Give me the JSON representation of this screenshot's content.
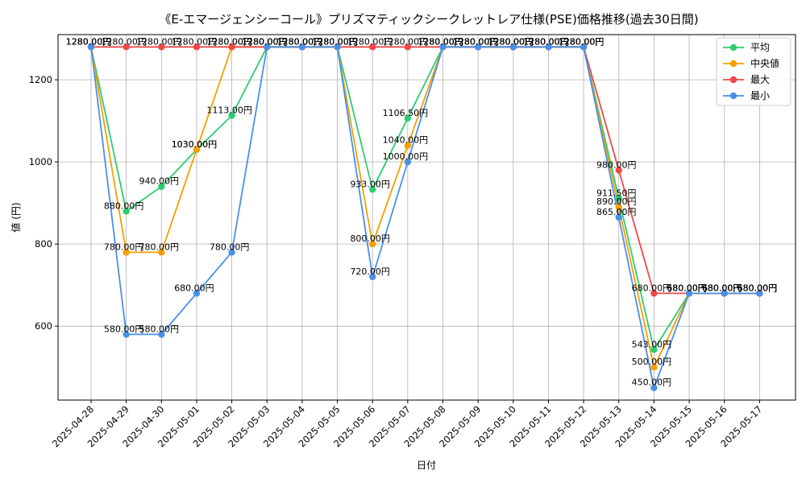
{
  "chart_data": {
    "type": "line",
    "title": "《E-エマージェンシーコール》プリズマティックシークレットレア仕様(PSE)価格推移(過去30日間)",
    "xlabel": "日付",
    "ylabel": "値 (円)",
    "ylim": [
      420,
      1310
    ],
    "yticks": [
      600,
      800,
      1000,
      1200
    ],
    "grid": true,
    "legend_position": "top-right",
    "categories": [
      "2025-04-28",
      "2025-04-29",
      "2025-04-30",
      "2025-05-01",
      "2025-05-02",
      "2025-05-03",
      "2025-05-04",
      "2025-05-05",
      "2025-05-06",
      "2025-05-07",
      "2025-05-08",
      "2025-05-09",
      "2025-05-10",
      "2025-05-11",
      "2025-05-12",
      "2025-05-13",
      "2025-05-14",
      "2025-05-15",
      "2025-05-16",
      "2025-05-17"
    ],
    "label_suffix": "円",
    "series": [
      {
        "name": "平均",
        "color": "#2ecc71",
        "values": [
          1280,
          880,
          940,
          1030,
          1113,
          1280,
          1280,
          1280,
          933,
          1106.5,
          1280,
          1280,
          1280,
          1280,
          1280,
          911.5,
          543,
          680,
          680,
          680
        ]
      },
      {
        "name": "中央値",
        "color": "#f5a000",
        "values": [
          1280,
          780,
          780,
          1030,
          1280,
          1280,
          1280,
          1280,
          800,
          1040,
          1280,
          1280,
          1280,
          1280,
          1280,
          890,
          500,
          680,
          680,
          680
        ]
      },
      {
        "name": "最大",
        "color": "#f04848",
        "values": [
          1280,
          1280,
          1280,
          1280,
          1280,
          1280,
          1280,
          1280,
          1280,
          1280,
          1280,
          1280,
          1280,
          1280,
          1280,
          980,
          680,
          680,
          680,
          680
        ]
      },
      {
        "name": "最小",
        "color": "#4a90e8",
        "values": [
          1280,
          580,
          580,
          680,
          780,
          1280,
          1280,
          1280,
          720,
          1000,
          1280,
          1280,
          1280,
          1280,
          1280,
          865,
          450,
          680,
          680,
          680
        ]
      }
    ]
  }
}
